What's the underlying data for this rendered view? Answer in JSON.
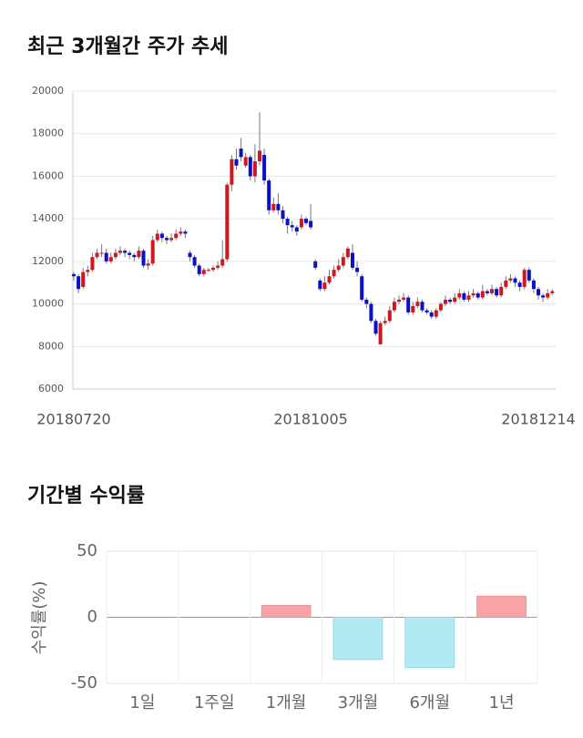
{
  "chart_data": [
    {
      "type": "candlestick",
      "title": "최근 3개월간 주가 추세",
      "categories": [
        "20180720",
        null,
        null,
        null,
        null,
        null,
        null,
        null,
        null,
        null,
        null,
        null,
        null,
        null,
        null,
        null,
        null,
        null,
        null,
        null,
        null,
        null,
        null,
        null,
        null,
        null,
        null,
        null,
        null,
        null,
        null,
        null,
        null,
        null,
        null,
        null,
        null,
        null,
        null,
        null,
        null,
        null,
        null,
        null,
        null,
        null,
        null,
        null,
        null,
        null,
        null,
        "20181005",
        null,
        null,
        null,
        null,
        null,
        null,
        null,
        null,
        null,
        null,
        null,
        null,
        null,
        null,
        null,
        null,
        null,
        null,
        null,
        null,
        null,
        null,
        null,
        null,
        null,
        null,
        null,
        null,
        null,
        null,
        null,
        null,
        null,
        null,
        null,
        null,
        null,
        null,
        null,
        null,
        null,
        null,
        null,
        null,
        null,
        null,
        null,
        null,
        "20181214",
        null,
        null,
        null
      ],
      "open": [
        11400,
        11300,
        10800,
        11500,
        11600,
        12200,
        12400,
        12400,
        12000,
        12200,
        12400,
        12500,
        12400,
        12300,
        12200,
        12500,
        11800,
        11900,
        13000,
        13300,
        13100,
        13000,
        13100,
        13300,
        13400,
        12400,
        12200,
        11800,
        11400,
        11600,
        11600,
        11700,
        11800,
        12100,
        15600,
        16800,
        17300,
        16500,
        16900,
        16000,
        16700,
        17000,
        15800,
        14400,
        14700,
        14400,
        14000,
        13700,
        13600,
        13600,
        14000,
        13900,
        12000,
        11100,
        10700,
        11000,
        11300,
        11600,
        11800,
        12200,
        12400,
        11700,
        11300,
        10200,
        10000,
        9200,
        8100,
        9100,
        9200,
        9700,
        10100,
        10200,
        10300,
        9600,
        9900,
        10100,
        9700,
        9600,
        9400,
        9700,
        10000,
        10200,
        10100,
        10300,
        10500,
        10200,
        10400,
        10500,
        10300,
        10600,
        10500,
        10700,
        10400,
        10800,
        11100,
        11200,
        11000,
        10800,
        11600,
        11100,
        10700,
        10400,
        10300,
        10500
      ],
      "high": [
        11500,
        11400,
        11700,
        11800,
        12400,
        12600,
        12800,
        12600,
        12400,
        12600,
        12700,
        12600,
        12500,
        12400,
        12700,
        12600,
        12100,
        13200,
        13500,
        13400,
        13200,
        13300,
        13500,
        13600,
        13500,
        12500,
        12300,
        11900,
        11700,
        11700,
        11800,
        12000,
        13000,
        15700,
        17000,
        17300,
        17800,
        17100,
        17000,
        17500,
        19000,
        17300,
        15900,
        15000,
        15200,
        14600,
        14100,
        13900,
        13700,
        14200,
        14100,
        14700,
        12100,
        11200,
        11300,
        11600,
        11800,
        12100,
        12400,
        12700,
        12800,
        12000,
        11400,
        10300,
        10100,
        9300,
        9200,
        9400,
        9900,
        10300,
        10400,
        10500,
        10400,
        10100,
        10300,
        10200,
        9800,
        9700,
        9800,
        10100,
        10400,
        10300,
        10500,
        10700,
        10600,
        10600,
        10700,
        10600,
        10900,
        10700,
        10900,
        10800,
        11000,
        11300,
        11400,
        11300,
        11100,
        11700,
        11700,
        11200,
        10800,
        10500,
        10700,
        10700
      ],
      "low": [
        11100,
        10500,
        10700,
        11300,
        11500,
        12100,
        12200,
        11900,
        11900,
        12100,
        12300,
        12200,
        12100,
        12000,
        12100,
        11700,
        11600,
        11800,
        12900,
        12900,
        12800,
        12900,
        13000,
        13200,
        13100,
        12000,
        11700,
        11300,
        11300,
        11500,
        11500,
        11600,
        11700,
        12000,
        15300,
        16300,
        16700,
        16400,
        15800,
        15700,
        16500,
        15600,
        14200,
        14300,
        14200,
        13800,
        13300,
        13400,
        13200,
        13500,
        13700,
        13500,
        11600,
        10600,
        10600,
        10900,
        11200,
        11500,
        11700,
        12100,
        11600,
        11300,
        10100,
        9800,
        9100,
        8500,
        8100,
        9000,
        9100,
        9600,
        10000,
        10100,
        9500,
        9500,
        9800,
        9600,
        9500,
        9300,
        9300,
        9600,
        9900,
        10000,
        10000,
        10200,
        10100,
        10100,
        10300,
        10200,
        10200,
        10400,
        10400,
        10300,
        10300,
        10700,
        11000,
        10800,
        10600,
        10700,
        11000,
        10500,
        10200,
        10100,
        10200,
        10400
      ],
      "close": [
        11300,
        10700,
        11500,
        11600,
        12200,
        12400,
        12400,
        12000,
        12200,
        12400,
        12500,
        12400,
        12300,
        12200,
        12500,
        11800,
        11900,
        13000,
        13300,
        13100,
        13000,
        13100,
        13300,
        13400,
        13300,
        12200,
        11800,
        11400,
        11600,
        11600,
        11700,
        11800,
        12100,
        15600,
        16800,
        16500,
        16900,
        16900,
        16000,
        16700,
        17200,
        15800,
        14400,
        14700,
        14400,
        14000,
        13700,
        13600,
        13400,
        14000,
        13800,
        13600,
        11700,
        10700,
        11000,
        11300,
        11600,
        11800,
        12200,
        12600,
        11700,
        11500,
        10200,
        10000,
        9200,
        8600,
        9100,
        9200,
        9700,
        10100,
        10200,
        10300,
        9600,
        9900,
        10100,
        9700,
        9600,
        9400,
        9700,
        10000,
        10200,
        10100,
        10300,
        10500,
        10200,
        10400,
        10500,
        10300,
        10600,
        10500,
        10700,
        10400,
        10800,
        11100,
        11200,
        11000,
        10800,
        11600,
        11100,
        10700,
        10400,
        10300,
        10500,
        10600
      ],
      "up_color": "#d0161e",
      "down_color": "#0a10c8",
      "ylim": [
        6000,
        20000
      ],
      "yticks": [
        6000,
        8000,
        10000,
        12000,
        14000,
        16000,
        18000,
        20000
      ],
      "grid": true
    },
    {
      "type": "bar",
      "title": "기간별 수익률",
      "y_label": "수익률(%)",
      "categories": [
        "1일",
        "1주일",
        "1개월",
        "3개월",
        "6개월",
        "1년"
      ],
      "values": [
        0,
        0,
        9,
        -32,
        -38,
        16
      ],
      "positive_color": "#f8a4a6",
      "negative_color": "#b2eaf4",
      "ylim": [
        -50,
        50
      ],
      "yticks": [
        -50,
        0,
        50
      ],
      "grid": true
    }
  ]
}
